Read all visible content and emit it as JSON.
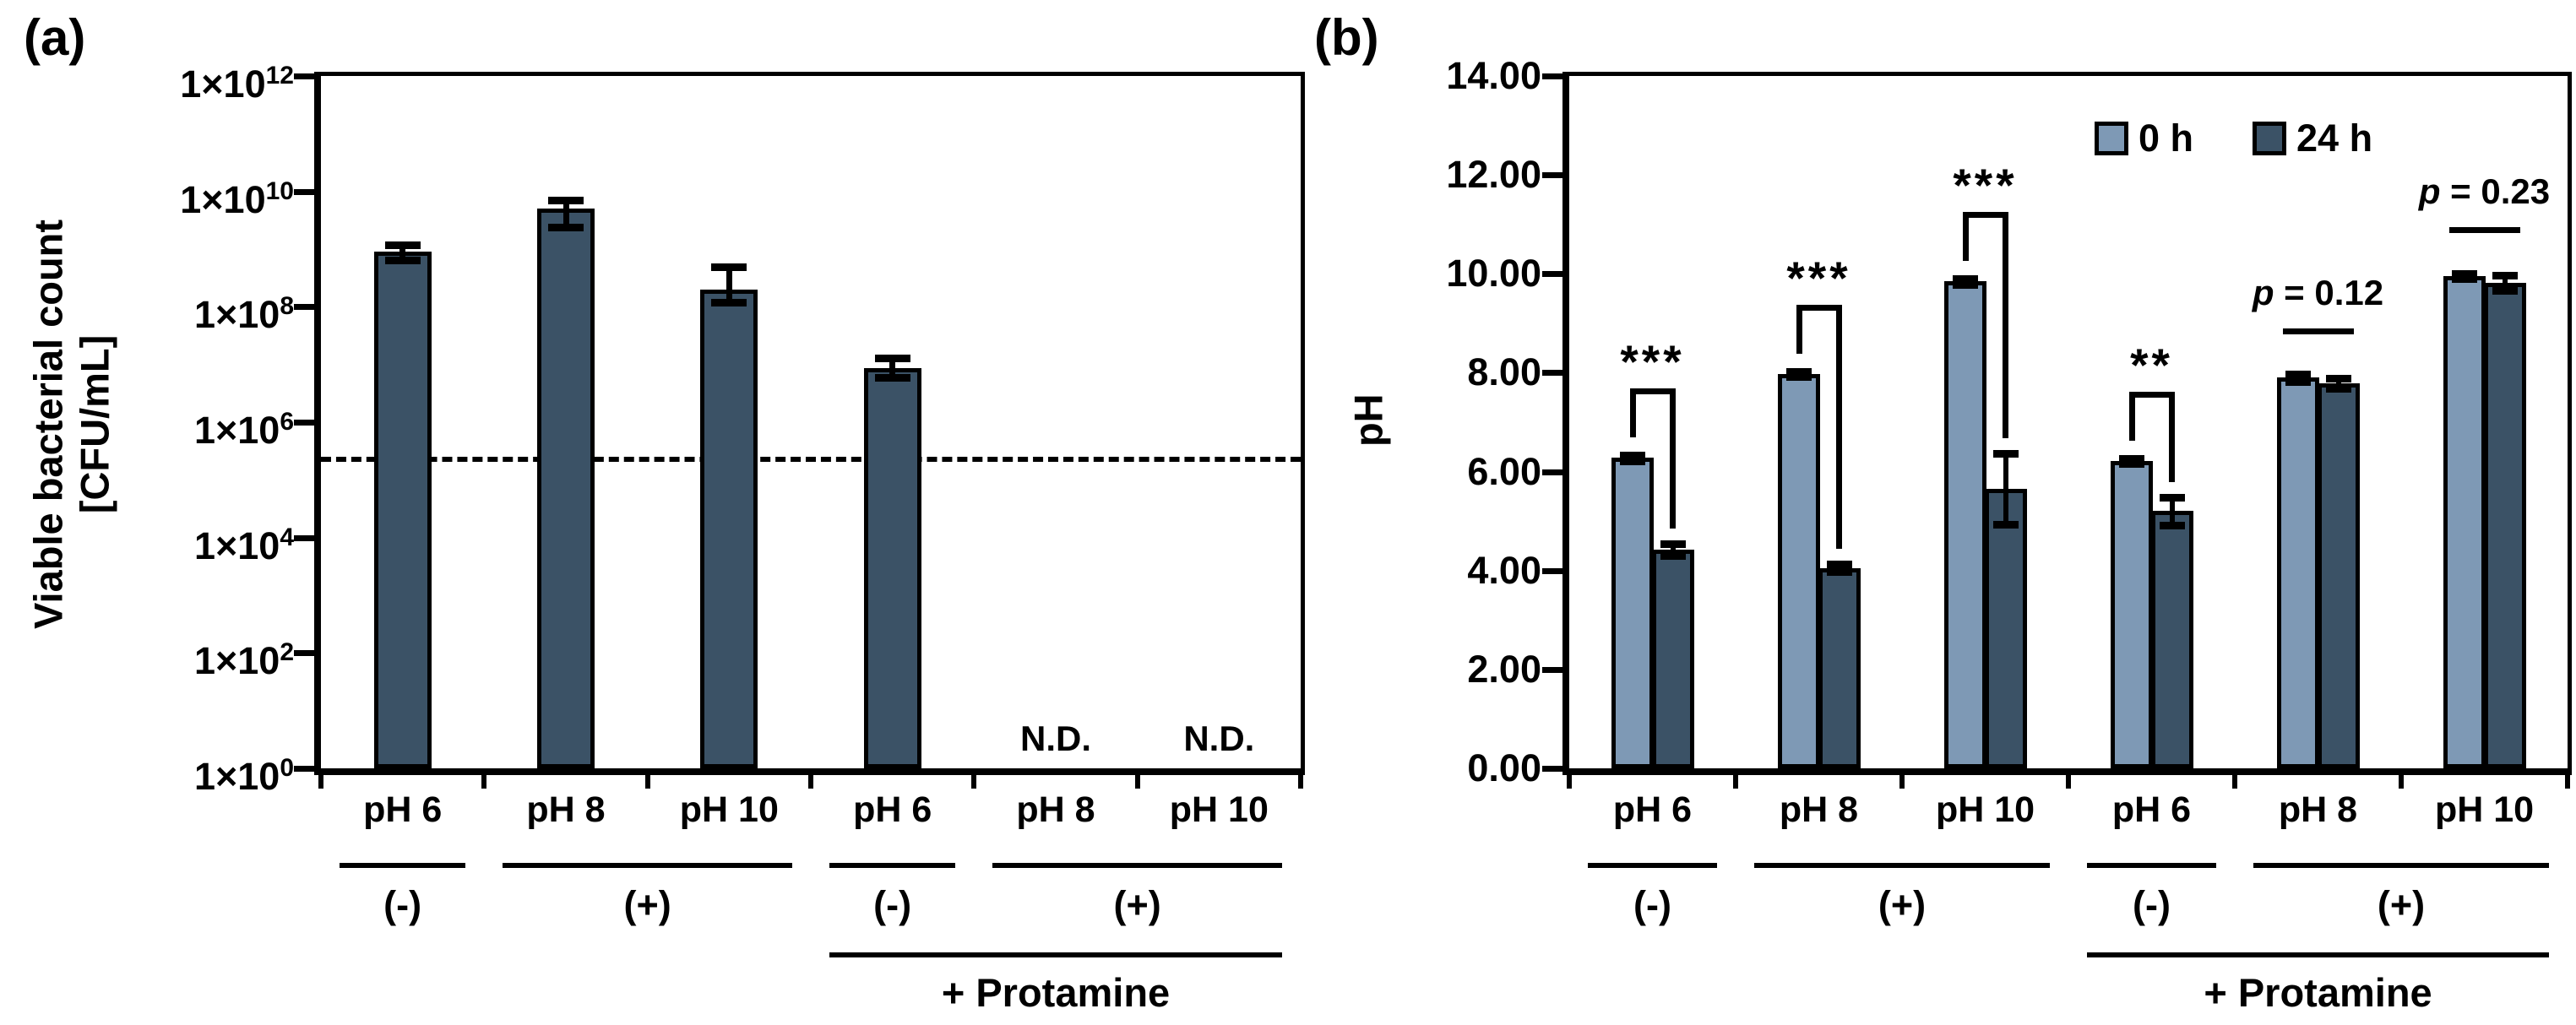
{
  "figure": {
    "panel_a_letter": "(a)",
    "panel_b_letter": "(b)",
    "background": "#ffffff"
  },
  "colors": {
    "bar_dark": "#3B5266",
    "bar_light": "#7E99B5",
    "axis": "#000000"
  },
  "chart_data": [
    {
      "id": "a",
      "type": "bar",
      "scale": "log10",
      "ylabel_line1": "Viable bacterial count",
      "ylabel_line2": "[CFU/mL]",
      "ylim": [
        1,
        1000000000000
      ],
      "ytick_label_base": "1×10",
      "ytick_exponents": [
        12,
        10,
        8,
        6,
        4,
        2,
        0
      ],
      "categories": [
        "pH 6",
        "pH 8",
        "pH 10",
        "pH 6",
        "pH 8",
        "pH 10"
      ],
      "values": [
        900000000,
        5000000000,
        200000000,
        8500000,
        null,
        null
      ],
      "error_high": [
        1200000000,
        7000000000,
        500000000,
        13000000,
        null,
        null
      ],
      "error_low": [
        650000000,
        2400000000,
        120000000,
        6000000,
        null,
        null
      ],
      "nd_label": "N.D.",
      "nd_slots": [
        4,
        5
      ],
      "dashed_line_value": 250000,
      "groups": [
        {
          "label": "(-)",
          "from": 0,
          "to": 0
        },
        {
          "label": "(+)",
          "from": 1,
          "to": 2
        },
        {
          "label": "(-)",
          "from": 3,
          "to": 3
        },
        {
          "label": "(+)",
          "from": 4,
          "to": 5
        }
      ],
      "supergroup": {
        "label": "+ Protamine",
        "from": 3,
        "to": 5
      },
      "legend_position": "none",
      "grid": false
    },
    {
      "id": "b",
      "type": "grouped-bar",
      "scale": "linear",
      "ylabel": "pH",
      "ylim": [
        0,
        14
      ],
      "ytick_step": 2,
      "ytick_labels": [
        "0.00",
        "2.00",
        "4.00",
        "6.00",
        "8.00",
        "10.00",
        "12.00",
        "14.00"
      ],
      "categories": [
        "pH 6",
        "pH 8",
        "pH 10",
        "pH 6",
        "pH 8",
        "pH 10"
      ],
      "series": [
        {
          "name": "0 h",
          "color_key": "bar_light",
          "values": [
            6.28,
            7.97,
            9.85,
            6.22,
            7.9,
            9.95
          ],
          "errors": [
            0.06,
            0.05,
            0.06,
            0.05,
            0.08,
            0.05
          ]
        },
        {
          "name": "24 h",
          "color_key": "bar_dark",
          "values": [
            4.42,
            4.05,
            5.65,
            5.2,
            7.78,
            9.82
          ],
          "errors": [
            0.12,
            0.08,
            0.72,
            0.28,
            0.1,
            0.15
          ]
        }
      ],
      "significance": [
        {
          "slot": 0,
          "kind": "bracket",
          "label": "***"
        },
        {
          "slot": 1,
          "kind": "bracket",
          "label": "***"
        },
        {
          "slot": 2,
          "kind": "bracket",
          "label": "***"
        },
        {
          "slot": 3,
          "kind": "bracket",
          "label": "**"
        },
        {
          "slot": 4,
          "kind": "pvalue",
          "label": "p = 0.12",
          "label_italic": "p",
          "label_rest": " = 0.12"
        },
        {
          "slot": 5,
          "kind": "pvalue",
          "label": "p = 0.23",
          "label_italic": "p",
          "label_rest": " = 0.23"
        }
      ],
      "groups": [
        {
          "label": "(-)",
          "from": 0,
          "to": 0
        },
        {
          "label": "(+)",
          "from": 1,
          "to": 2
        },
        {
          "label": "(-)",
          "from": 3,
          "to": 3
        },
        {
          "label": "(+)",
          "from": 4,
          "to": 5
        }
      ],
      "supergroup": {
        "label": "+ Protamine",
        "from": 3,
        "to": 5
      },
      "legend_position": "top-right-inside",
      "grid": false
    }
  ]
}
